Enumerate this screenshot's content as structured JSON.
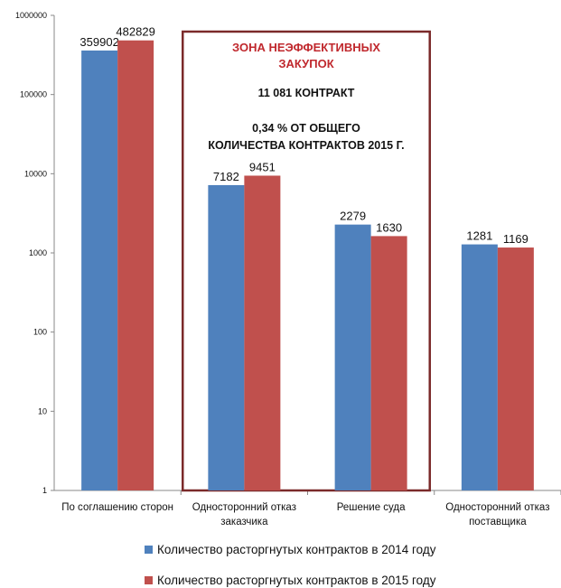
{
  "chart_data": {
    "type": "bar",
    "yscale": "log",
    "ylim": [
      1,
      1000000
    ],
    "y_ticks": [
      {
        "value": 1,
        "label": "1"
      },
      {
        "value": 10,
        "label": "10"
      },
      {
        "value": 100,
        "label": "100"
      },
      {
        "value": 1000,
        "label": "1000"
      },
      {
        "value": 10000,
        "label": "10000"
      },
      {
        "value": 100000,
        "label": "100000"
      },
      {
        "value": 1000000,
        "label": "1000000"
      }
    ],
    "categories": [
      [
        "По соглашению сторон"
      ],
      [
        "Односторонний отказ",
        "заказчика"
      ],
      [
        "Решение суда"
      ],
      [
        "Односторонний отказ",
        "поставщика"
      ]
    ],
    "series": [
      {
        "name": "Количество расторгнутых контрактов в 2014 году",
        "color": "#4f81bd",
        "values": [
          359902,
          7182,
          2279,
          1281
        ]
      },
      {
        "name": "Количество расторгнутых контрактов в 2015 году",
        "color": "#c0504d",
        "values": [
          482829,
          9451,
          1630,
          1169
        ]
      }
    ],
    "legend_position": "bottom",
    "highlight_box": {
      "categories_spanned": [
        1,
        2
      ],
      "border_color": "#7b2a2a",
      "title_lines": [
        "ЗОНА НЕЭФФЕКТИВНЫХ",
        "ЗАКУПОК"
      ],
      "title_color": "#c0282d",
      "line2": "11 081  КОНТРАКТ",
      "line3": [
        "0,34 % ОТ ОБЩЕГО",
        "КОЛИЧЕСТВА КОНТРАКТОВ 2015 Г."
      ]
    }
  }
}
